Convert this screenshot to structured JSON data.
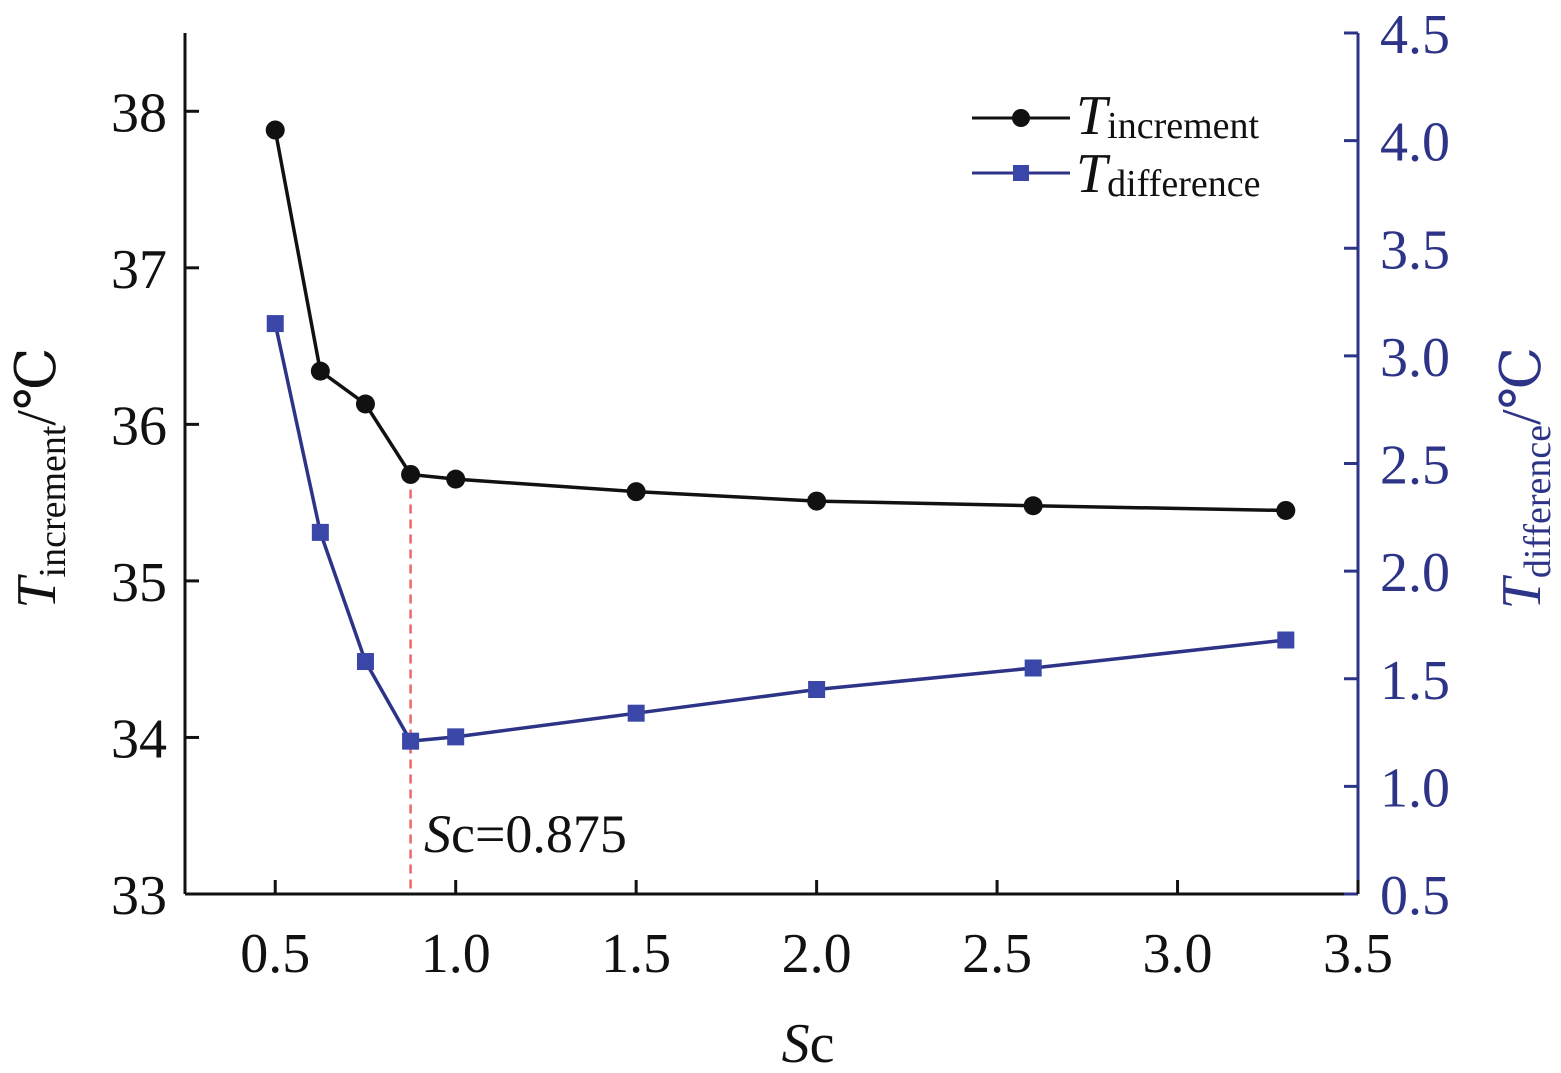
{
  "chart_data": {
    "type": "line",
    "x": [
      0.5,
      0.625,
      0.75,
      0.875,
      1.0,
      1.5,
      2.0,
      2.6,
      3.3
    ],
    "xlim": [
      0.25,
      3.5
    ],
    "xticks": [
      0.5,
      1.0,
      1.5,
      2.0,
      2.5,
      3.0,
      3.5
    ],
    "xtick_labels": [
      "0.5",
      "1.0",
      "1.5",
      "2.0",
      "2.5",
      "3.0",
      "3.5"
    ],
    "xlabel": {
      "italic": "S",
      "normal": "c"
    },
    "left_axis": {
      "ylim": [
        33,
        38.5
      ],
      "ticks": [
        33,
        34,
        35,
        36,
        37,
        38
      ],
      "tick_labels": [
        "33",
        "34",
        "35",
        "36",
        "37",
        "38"
      ],
      "label": {
        "main": "T",
        "sub": "increment",
        "unit": "/℃"
      }
    },
    "right_axis": {
      "ylim": [
        0.5,
        4.5
      ],
      "ticks": [
        0.5,
        1.0,
        1.5,
        2.0,
        2.5,
        3.0,
        3.5,
        4.0,
        4.5
      ],
      "tick_labels": [
        "0.5",
        "1.0",
        "1.5",
        "2.0",
        "2.5",
        "3.0",
        "3.5",
        "4.0",
        "4.5"
      ],
      "label": {
        "main": "T",
        "sub": "difference",
        "unit": "/℃"
      }
    },
    "series": [
      {
        "name": "T increment",
        "legend_main": "T",
        "legend_sub": "increment",
        "axis": "left",
        "marker": "circle",
        "color": "#111111",
        "values": [
          37.88,
          36.34,
          36.13,
          35.68,
          35.65,
          35.57,
          35.51,
          35.48,
          35.45
        ]
      },
      {
        "name": "T difference",
        "legend_main": "T",
        "legend_sub": "difference",
        "axis": "right",
        "marker": "square",
        "color": "#2d3487",
        "values": [
          3.15,
          2.18,
          1.58,
          1.21,
          1.23,
          1.34,
          1.45,
          1.55,
          1.68
        ]
      }
    ],
    "annotation": {
      "x": 0.875,
      "text_italic": "S",
      "text_rest": "c=0.875",
      "line_color": "#ee6666"
    },
    "colors": {
      "left_axis": "#111111",
      "right_axis": "#2d3487"
    }
  }
}
